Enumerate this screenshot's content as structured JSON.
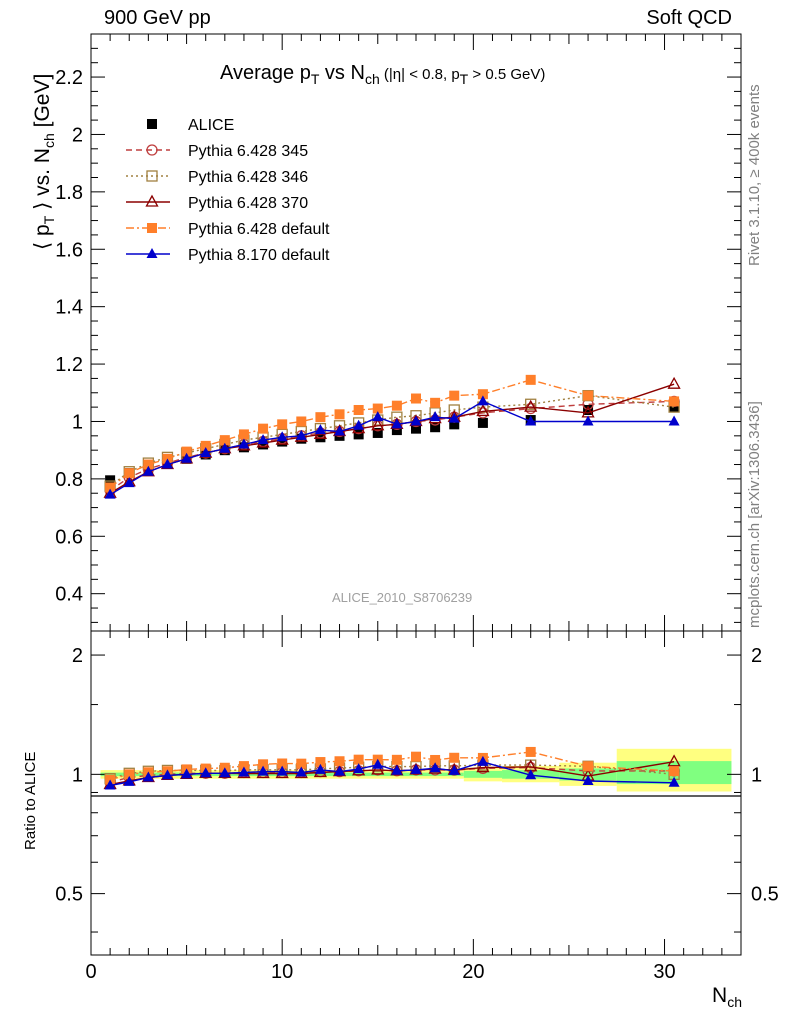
{
  "header": {
    "left": "900 GeV pp",
    "right": "Soft QCD"
  },
  "title": {
    "main": "Average p",
    "sub1": "T",
    "mid": " vs N",
    "sub2": "ch",
    "cut": " (|η| < 0.8, p",
    "sub3": "T",
    "cut_end": " > 0.5 GeV)"
  },
  "side_labels": {
    "rivet": "Rivet 3.1.10, ≥ 400k events",
    "mcplots": "mcplots.cern.ch [arXiv:1306.3436]"
  },
  "analysis_id": "ALICE_2010_S8706239",
  "axis_labels": {
    "y_main": "⟨ p_T ⟩ vs. N_ch [GeV]",
    "y_ratio": "Ratio to ALICE",
    "x": "N_ch"
  },
  "colors": {
    "ALICE": "#000000",
    "p345": "#bf3f3f",
    "p346": "#a08040",
    "p370": "#8b0000",
    "p6def": "#ff7f2a",
    "p8def": "#0000cc",
    "band_inner": "#80ff80",
    "band_outer": "#ffff80"
  },
  "chart_data": [
    {
      "type": "scatter",
      "panel": "main",
      "xlim": [
        0,
        34
      ],
      "ylim": [
        0.27,
        2.35
      ],
      "yticks": [
        0.4,
        0.6,
        0.8,
        1.0,
        1.2,
        1.4,
        1.6,
        1.8,
        2.0,
        2.2
      ],
      "ytick_labels": [
        "0.4",
        "0.6",
        "0.8",
        "1",
        "1.2",
        "1.4",
        "1.6",
        "1.8",
        "2",
        "2.2"
      ],
      "xticks": [
        0,
        10,
        20,
        30
      ],
      "xtick_labels": [
        "0",
        "10",
        "20",
        "30"
      ],
      "legend_position": "top-left",
      "series": [
        {
          "name": "ALICE",
          "marker": "square-filled",
          "key": "ALICE",
          "x": [
            1,
            2,
            3,
            4,
            5,
            6,
            7,
            8,
            9,
            10,
            11,
            12,
            13,
            14,
            15,
            16,
            17,
            18,
            19,
            20.5,
            23,
            26,
            30.5
          ],
          "y": [
            0.795,
            0.82,
            0.84,
            0.855,
            0.87,
            0.885,
            0.9,
            0.91,
            0.92,
            0.93,
            0.94,
            0.945,
            0.95,
            0.955,
            0.96,
            0.97,
            0.975,
            0.98,
            0.99,
            0.995,
            1.005,
            1.04,
            1.05
          ]
        },
        {
          "name": "Pythia 6.428 345",
          "marker": "circle-open",
          "line": "dashed",
          "key": "p345",
          "x": [
            1,
            2,
            3,
            4,
            5,
            6,
            7,
            8,
            9,
            10,
            11,
            12,
            13,
            14,
            15,
            16,
            17,
            18,
            19,
            20.5,
            23,
            26,
            30.5
          ],
          "y": [
            0.76,
            0.805,
            0.835,
            0.855,
            0.875,
            0.89,
            0.905,
            0.92,
            0.93,
            0.94,
            0.95,
            0.96,
            0.965,
            0.975,
            0.985,
            0.99,
            1.0,
            1.005,
            1.015,
            1.03,
            1.045,
            1.06,
            1.07
          ]
        },
        {
          "name": "Pythia 6.428 346",
          "marker": "square-open",
          "line": "dotted",
          "key": "p346",
          "x": [
            1,
            2,
            3,
            4,
            5,
            6,
            7,
            8,
            9,
            10,
            11,
            12,
            13,
            14,
            15,
            16,
            17,
            18,
            19,
            20.5,
            23,
            26,
            30.5
          ],
          "y": [
            0.775,
            0.825,
            0.855,
            0.875,
            0.89,
            0.905,
            0.92,
            0.935,
            0.945,
            0.955,
            0.965,
            0.975,
            0.985,
            0.995,
            1.005,
            1.015,
            1.02,
            1.03,
            1.04,
            1.05,
            1.06,
            1.09,
            1.05
          ]
        },
        {
          "name": "Pythia 6.428 370",
          "marker": "triangle-open",
          "line": "solid",
          "key": "p370",
          "x": [
            1,
            2,
            3,
            4,
            5,
            6,
            7,
            8,
            9,
            10,
            11,
            12,
            13,
            14,
            15,
            16,
            17,
            18,
            19,
            20.5,
            23,
            26,
            30.5
          ],
          "y": [
            0.75,
            0.79,
            0.825,
            0.85,
            0.87,
            0.89,
            0.905,
            0.915,
            0.925,
            0.935,
            0.945,
            0.955,
            0.965,
            0.975,
            0.985,
            0.99,
            1.0,
            1.01,
            1.015,
            1.035,
            1.05,
            1.03,
            1.13
          ]
        },
        {
          "name": "Pythia 6.428 default",
          "marker": "square-filled",
          "line": "dashdot",
          "key": "p6def",
          "x": [
            1,
            2,
            3,
            4,
            5,
            6,
            7,
            8,
            9,
            10,
            11,
            12,
            13,
            14,
            15,
            16,
            17,
            18,
            19,
            20.5,
            23,
            26,
            30.5
          ],
          "y": [
            0.77,
            0.82,
            0.85,
            0.87,
            0.895,
            0.915,
            0.935,
            0.955,
            0.975,
            0.99,
            1.0,
            1.015,
            1.025,
            1.04,
            1.045,
            1.055,
            1.08,
            1.065,
            1.09,
            1.095,
            1.145,
            1.09,
            1.07
          ]
        },
        {
          "name": "Pythia 8.170 default",
          "marker": "triangle-filled",
          "line": "solid",
          "key": "p8def",
          "x": [
            1,
            2,
            3,
            4,
            5,
            6,
            7,
            8,
            9,
            10,
            11,
            12,
            13,
            14,
            15,
            16,
            17,
            18,
            19,
            20.5,
            23,
            26,
            30.5
          ],
          "y": [
            0.745,
            0.785,
            0.825,
            0.85,
            0.87,
            0.89,
            0.905,
            0.92,
            0.935,
            0.945,
            0.95,
            0.97,
            0.965,
            0.985,
            1.015,
            0.99,
            1.0,
            1.015,
            1.01,
            1.07,
            1.0,
            1.0,
            1.0
          ]
        }
      ]
    },
    {
      "type": "scatter",
      "panel": "ratio",
      "log_y": true,
      "ylim": [
        0.35,
        2.3
      ],
      "yticks": [
        0.5,
        1,
        2
      ],
      "ytick_labels": [
        "0.5",
        "1",
        "2"
      ],
      "xlim": [
        0,
        34
      ],
      "reference": 1.0,
      "series": [
        {
          "name": "Pythia 6.428 345",
          "key": "p345",
          "y": [
            0.956,
            0.982,
            0.994,
            1.0,
            1.006,
            1.006,
            1.006,
            1.011,
            1.011,
            1.011,
            1.011,
            1.016,
            1.016,
            1.021,
            1.026,
            1.021,
            1.026,
            1.026,
            1.025,
            1.035,
            1.04,
            1.02,
            1.02
          ]
        },
        {
          "name": "Pythia 6.428 346",
          "key": "p346",
          "y": [
            0.975,
            1.006,
            1.018,
            1.023,
            1.023,
            1.023,
            1.022,
            1.027,
            1.027,
            1.027,
            1.027,
            1.032,
            1.037,
            1.042,
            1.047,
            1.046,
            1.046,
            1.051,
            1.05,
            1.055,
            1.055,
            1.048,
            1.0
          ]
        },
        {
          "name": "Pythia 6.428 370",
          "key": "p370",
          "y": [
            0.943,
            0.963,
            0.982,
            0.994,
            1.0,
            1.006,
            1.006,
            1.005,
            1.005,
            1.005,
            1.005,
            1.011,
            1.016,
            1.021,
            1.026,
            1.021,
            1.026,
            1.031,
            1.025,
            1.04,
            1.045,
            0.99,
            1.076
          ]
        },
        {
          "name": "Pythia 6.428 default",
          "key": "p6def",
          "y": [
            0.969,
            1.0,
            1.012,
            1.018,
            1.029,
            1.034,
            1.039,
            1.049,
            1.06,
            1.065,
            1.064,
            1.074,
            1.079,
            1.089,
            1.089,
            1.088,
            1.108,
            1.087,
            1.101,
            1.1,
            1.139,
            1.048,
            1.019
          ]
        },
        {
          "name": "Pythia 8.170 default",
          "key": "p8def",
          "y": [
            0.937,
            0.957,
            0.982,
            0.994,
            1.0,
            1.006,
            1.006,
            1.011,
            1.016,
            1.016,
            1.011,
            1.026,
            1.016,
            1.031,
            1.057,
            1.021,
            1.026,
            1.036,
            1.02,
            1.075,
            0.995,
            0.962,
            0.952
          ]
        }
      ]
    }
  ]
}
